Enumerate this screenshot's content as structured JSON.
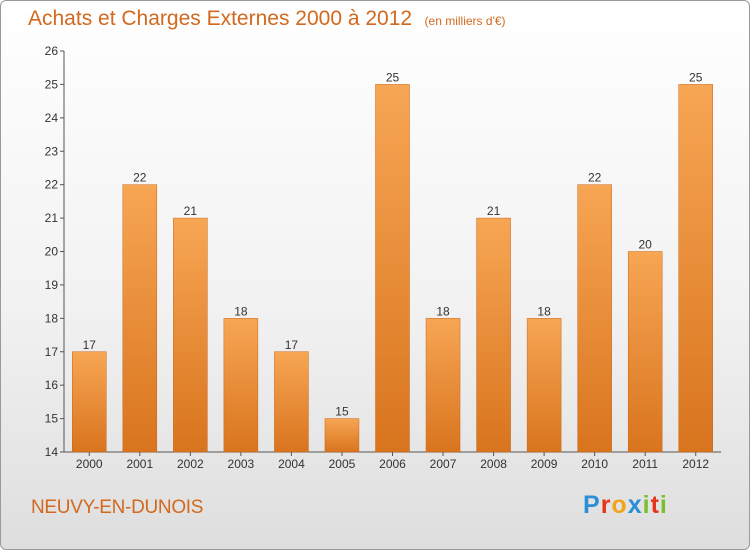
{
  "title": "Achats et Charges Externes 2000 à 2012",
  "unit": "(en milliers d'€)",
  "commune": "NEUVY-EN-DUNOIS",
  "logo": {
    "letters": [
      "P",
      "r",
      "o",
      "x",
      "i",
      "t",
      "i"
    ],
    "colors": [
      "#2a8fd6",
      "#e8331c",
      "#f3a31a",
      "#2a8fd6",
      "#7bbf2e",
      "#e8331c",
      "#7bbf2e"
    ]
  },
  "colors": {
    "bar_light": "#f7a654",
    "bar_dark": "#d9741e",
    "text": "#333333",
    "title": "#d2691e"
  },
  "chart_data": {
    "type": "bar",
    "categories": [
      "2000",
      "2001",
      "2002",
      "2003",
      "2004",
      "2005",
      "2006",
      "2007",
      "2008",
      "2009",
      "2010",
      "2011",
      "2012"
    ],
    "values": [
      17,
      22,
      21,
      18,
      17,
      15,
      25,
      18,
      21,
      18,
      22,
      20,
      25
    ],
    "title": "Achats et Charges Externes 2000 à 2012",
    "ylim": [
      14,
      26
    ],
    "yticks": [
      14,
      15,
      16,
      17,
      18,
      19,
      20,
      21,
      22,
      23,
      24,
      25,
      26
    ],
    "grid": false,
    "data_labels": true
  }
}
